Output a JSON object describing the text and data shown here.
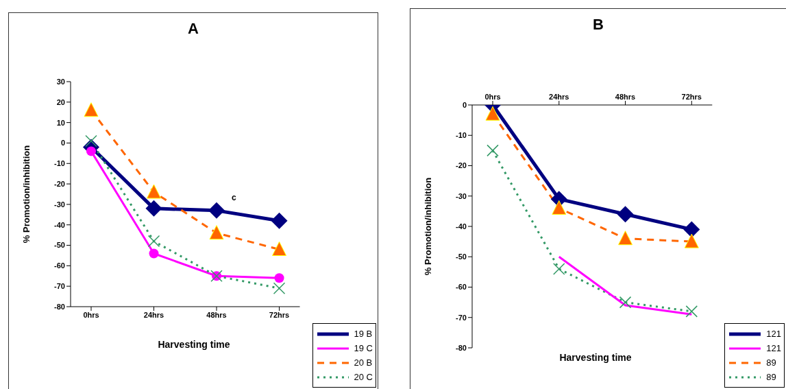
{
  "chart_data": [
    {
      "type": "line",
      "title": "A",
      "xlabel": "Harvesting time",
      "ylabel": "% Promotion/inhibition",
      "categories": [
        "0hrs",
        "24hrs",
        "48hrs",
        "72hrs"
      ],
      "ylim": [
        -80,
        30
      ],
      "yticks": [
        -80,
        -70,
        -60,
        -50,
        -40,
        -30,
        -20,
        -10,
        0,
        10,
        20,
        30
      ],
      "legend": "bottom right",
      "annotations": [
        "c"
      ],
      "series": [
        {
          "name": "19 B",
          "color": "#000080",
          "values": [
            -2,
            -32,
            -33,
            -38
          ],
          "marker": "diamond",
          "line_style": "solid"
        },
        {
          "name": "19 C",
          "color": "#ff00ff",
          "values": [
            -4,
            -54,
            -65,
            -66
          ],
          "marker": "circle",
          "line_style": "solid"
        },
        {
          "name": "20 B",
          "color": "#ff6600",
          "values": [
            16,
            -24,
            -44,
            -52
          ],
          "marker": "triangle",
          "line_style": "dashed"
        },
        {
          "name": "20 C",
          "color": "#339966",
          "values": [
            1,
            -48,
            -65,
            -71
          ],
          "marker": "cross",
          "line_style": "dotted"
        }
      ]
    },
    {
      "type": "line",
      "title": "B",
      "xlabel": "Harvesting time",
      "ylabel": "% Promotion/inhibition",
      "categories": [
        "0hrs",
        "24hrs",
        "48hrs",
        "72hrs"
      ],
      "ylim": [
        -80,
        0
      ],
      "yticks": [
        -80,
        -70,
        -60,
        -50,
        -40,
        -30,
        -20,
        -10,
        0
      ],
      "legend": "bottom right",
      "series": [
        {
          "name": "121",
          "color": "#000080",
          "values": [
            0,
            -31,
            -36,
            -41
          ],
          "marker": "diamond",
          "line_style": "solid"
        },
        {
          "name": "121",
          "color": "#ff00ff",
          "values": [
            null,
            -50,
            -66,
            -69
          ],
          "marker": "none",
          "line_style": "solid"
        },
        {
          "name": "89",
          "color": "#ff6600",
          "values": [
            -3,
            -34,
            -44,
            -45
          ],
          "marker": "triangle",
          "line_style": "dashed"
        },
        {
          "name": "89",
          "color": "#339966",
          "values": [
            -15,
            -54,
            -65,
            -68
          ],
          "marker": "cross",
          "line_style": "dotted"
        }
      ]
    }
  ]
}
